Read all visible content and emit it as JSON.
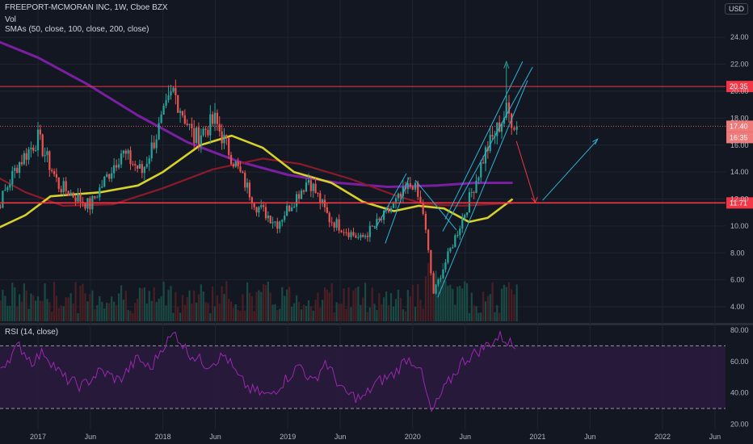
{
  "header": {
    "title": "FREEPORT-MCMORAN INC, 1W, Cboe BZX",
    "volume_label": "Vol",
    "sma_label": "SMAs (50, close, 100, close, 200, close)",
    "currency": "USD"
  },
  "rsi": {
    "label": "RSI (14, close)",
    "ticks": [
      "80.00",
      "60.00",
      "40.00",
      "20.00"
    ],
    "bounds": [
      70,
      30
    ],
    "ylim": [
      20,
      82
    ]
  },
  "colors": {
    "background": "#131722",
    "grid": "#1f2430",
    "up": "#26a69a",
    "down": "#ef5350",
    "sma50": "#d7d22a",
    "sma100": "#8b1a2a",
    "sma200": "#7b1fa2",
    "resistance": "#f23645",
    "support": "#f23645",
    "channel": "#2bb5d8",
    "arrow_down": "#f23645",
    "arrow_up": "#26a69a",
    "rsi_line": "#9c27b0",
    "rsi_band": "#2a1a3d"
  },
  "chart_data": {
    "type": "candlestick",
    "symbol": "FREEPORT-MCMORAN INC",
    "interval": "1W",
    "exchange": "Cboe BZX",
    "ylim": [
      3,
      25
    ],
    "y_ticks": [
      "24.00",
      "22.00",
      "20.00",
      "18.00",
      "16.00",
      "14.00",
      "12.00",
      "10.00",
      "8.00",
      "6.00",
      "4.00"
    ],
    "x_ticks": [
      "2017",
      "Jun",
      "2018",
      "Jun",
      "2019",
      "Jun",
      "2020",
      "Jun",
      "2021",
      "Jun",
      "2022",
      "Jun"
    ],
    "price_labels": {
      "resistance": "20.35",
      "last_price": "17.40",
      "countdown": "16:35",
      "support": "11.71"
    },
    "key_points": [
      {
        "date": "2016-08",
        "price": 9.5
      },
      {
        "date": "2016-11",
        "price": 14.5
      },
      {
        "date": "2017-01",
        "price": 16.5
      },
      {
        "date": "2017-03",
        "price": 13.0
      },
      {
        "date": "2017-06",
        "price": 11.5
      },
      {
        "date": "2017-09",
        "price": 15.5
      },
      {
        "date": "2017-11",
        "price": 14.0
      },
      {
        "date": "2018-02",
        "price": 20.0
      },
      {
        "date": "2018-04",
        "price": 16.5
      },
      {
        "date": "2018-06",
        "price": 17.8
      },
      {
        "date": "2018-08",
        "price": 14.5
      },
      {
        "date": "2018-10",
        "price": 11.5
      },
      {
        "date": "2018-12",
        "price": 10.2
      },
      {
        "date": "2019-03",
        "price": 13.5
      },
      {
        "date": "2019-05",
        "price": 10.5
      },
      {
        "date": "2019-08",
        "price": 9.0
      },
      {
        "date": "2019-10",
        "price": 10.5
      },
      {
        "date": "2020-01",
        "price": 13.2
      },
      {
        "date": "2020-02",
        "price": 11.0
      },
      {
        "date": "2020-03",
        "price": 5.0
      },
      {
        "date": "2020-06",
        "price": 11.0
      },
      {
        "date": "2020-08",
        "price": 15.5
      },
      {
        "date": "2020-10",
        "price": 18.5
      },
      {
        "date": "2020-11",
        "price": 17.4
      }
    ],
    "sma50": [
      [
        2016.6,
        9.5
      ],
      [
        2016.9,
        10.8
      ],
      [
        2017.1,
        12.2
      ],
      [
        2017.5,
        12.5
      ],
      [
        2017.8,
        13.0
      ],
      [
        2018.0,
        14.0
      ],
      [
        2018.3,
        16.0
      ],
      [
        2018.55,
        16.7
      ],
      [
        2018.8,
        15.8
      ],
      [
        2019.05,
        14.0
      ],
      [
        2019.35,
        13.2
      ],
      [
        2019.6,
        11.8
      ],
      [
        2019.85,
        11.1
      ],
      [
        2020.05,
        11.5
      ],
      [
        2020.25,
        11.3
      ],
      [
        2020.45,
        10.3
      ],
      [
        2020.6,
        10.6
      ],
      [
        2020.8,
        12.0
      ]
    ],
    "sma100": [
      [
        2016.6,
        14.0
      ],
      [
        2016.9,
        12.5
      ],
      [
        2017.2,
        11.5
      ],
      [
        2017.6,
        11.6
      ],
      [
        2018.0,
        12.8
      ],
      [
        2018.4,
        14.2
      ],
      [
        2018.8,
        15.0
      ],
      [
        2019.1,
        14.6
      ],
      [
        2019.5,
        13.5
      ],
      [
        2019.85,
        12.3
      ],
      [
        2020.1,
        11.6
      ],
      [
        2020.4,
        11.5
      ],
      [
        2020.8,
        11.7
      ]
    ],
    "sma200": [
      [
        2016.6,
        24.0
      ],
      [
        2017.0,
        22.5
      ],
      [
        2017.4,
        20.5
      ],
      [
        2017.8,
        18.2
      ],
      [
        2018.2,
        16.2
      ],
      [
        2018.6,
        14.8
      ],
      [
        2019.0,
        13.8
      ],
      [
        2019.4,
        13.2
      ],
      [
        2019.8,
        12.9
      ],
      [
        2020.2,
        13.0
      ],
      [
        2020.5,
        13.2
      ],
      [
        2020.8,
        13.2
      ]
    ],
    "volume_label": "Vol",
    "rsi_series": [
      [
        2016.7,
        56
      ],
      [
        2016.85,
        70
      ],
      [
        2016.95,
        60
      ],
      [
        2017.05,
        66
      ],
      [
        2017.2,
        50
      ],
      [
        2017.35,
        44
      ],
      [
        2017.5,
        54
      ],
      [
        2017.65,
        48
      ],
      [
        2017.8,
        62
      ],
      [
        2017.9,
        55
      ],
      [
        2018.0,
        70
      ],
      [
        2018.1,
        78
      ],
      [
        2018.2,
        66
      ],
      [
        2018.35,
        58
      ],
      [
        2018.5,
        64
      ],
      [
        2018.6,
        50
      ],
      [
        2018.7,
        42
      ],
      [
        2018.85,
        38
      ],
      [
        2019.0,
        50
      ],
      [
        2019.1,
        58
      ],
      [
        2019.2,
        46
      ],
      [
        2019.3,
        60
      ],
      [
        2019.45,
        40
      ],
      [
        2019.6,
        36
      ],
      [
        2019.7,
        46
      ],
      [
        2019.85,
        52
      ],
      [
        2019.95,
        62
      ],
      [
        2020.05,
        58
      ],
      [
        2020.15,
        27
      ],
      [
        2020.25,
        42
      ],
      [
        2020.4,
        60
      ],
      [
        2020.55,
        68
      ],
      [
        2020.7,
        76
      ],
      [
        2020.78,
        72
      ],
      [
        2020.82,
        68
      ]
    ]
  }
}
